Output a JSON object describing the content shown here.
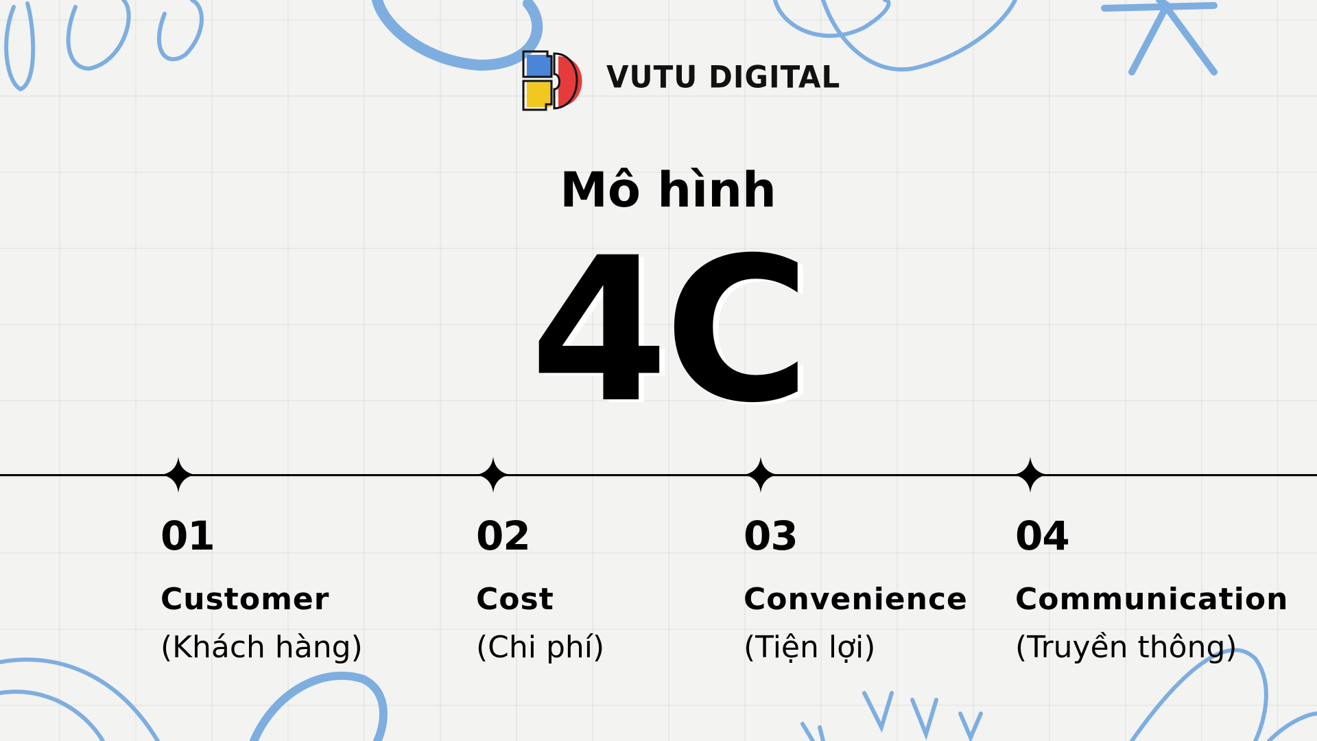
{
  "brand": {
    "name": "VUTU DIGITAL",
    "colors": {
      "blue": "#4a86d8",
      "yellow": "#f2c81e",
      "red": "#e63b3b"
    }
  },
  "title": "Mô hình",
  "headline": "4C",
  "accent_color": "#7eaee0",
  "items": [
    {
      "num": "01",
      "label": "Customer",
      "sub": "(Khách hàng)"
    },
    {
      "num": "02",
      "label": "Cost",
      "sub": "(Chi phí)"
    },
    {
      "num": "03",
      "label": "Convenience",
      "sub": "(Tiện lợi)"
    },
    {
      "num": "04",
      "label": "Communication",
      "sub": "(Truyền thông)"
    }
  ]
}
